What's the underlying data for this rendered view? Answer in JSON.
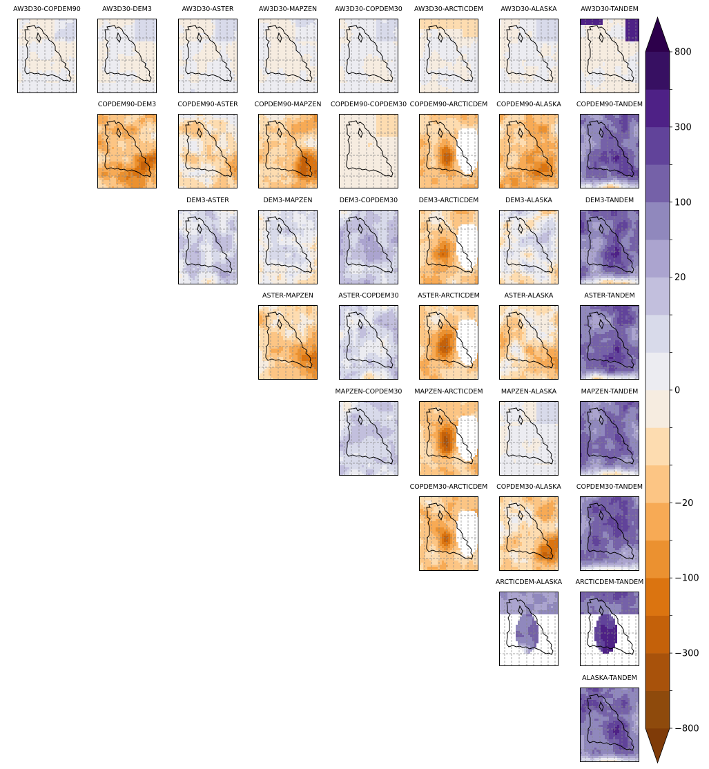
{
  "chart_data": {
    "type": "heatmap",
    "layout": "upper-triangular grid of pairwise difference maps",
    "dataset_order": [
      "AW3D30",
      "COPDEM90",
      "DEM3",
      "ASTER",
      "MAPZEN",
      "COPDEM30",
      "ARCTICDEM",
      "ALASKA",
      "TANDEM"
    ],
    "panels": [
      {
        "title": "AW3D30-COPDEM90",
        "row": 0,
        "col": 0,
        "tone": "near-zero"
      },
      {
        "title": "AW3D30-DEM3",
        "row": 0,
        "col": 1,
        "tone": "near-zero"
      },
      {
        "title": "AW3D30-ASTER",
        "row": 0,
        "col": 2,
        "tone": "near-zero"
      },
      {
        "title": "AW3D30-MAPZEN",
        "row": 0,
        "col": 3,
        "tone": "near-zero"
      },
      {
        "title": "AW3D30-COPDEM30",
        "row": 0,
        "col": 4,
        "tone": "near-zero"
      },
      {
        "title": "AW3D30-ARCTICDEM",
        "row": 0,
        "col": 5,
        "tone": "near-zero-arctic"
      },
      {
        "title": "AW3D30-ALASKA",
        "row": 0,
        "col": 6,
        "tone": "near-zero"
      },
      {
        "title": "AW3D30-TANDEM",
        "row": 0,
        "col": 7,
        "tone": "near-zero-tandem"
      },
      {
        "title": "COPDEM90-DEM3",
        "row": 1,
        "col": 1,
        "tone": "negative"
      },
      {
        "title": "COPDEM90-ASTER",
        "row": 1,
        "col": 2,
        "tone": "negative-mixed"
      },
      {
        "title": "COPDEM90-MAPZEN",
        "row": 1,
        "col": 3,
        "tone": "negative"
      },
      {
        "title": "COPDEM90-COPDEM30",
        "row": 1,
        "col": 4,
        "tone": "near-zero-neg"
      },
      {
        "title": "COPDEM90-ARCTICDEM",
        "row": 1,
        "col": 5,
        "tone": "arctic-negative"
      },
      {
        "title": "COPDEM90-ALASKA",
        "row": 1,
        "col": 6,
        "tone": "negative"
      },
      {
        "title": "COPDEM90-TANDEM",
        "row": 1,
        "col": 7,
        "tone": "tandem"
      },
      {
        "title": "DEM3-ASTER",
        "row": 2,
        "col": 2,
        "tone": "positive-mixed"
      },
      {
        "title": "DEM3-MAPZEN",
        "row": 2,
        "col": 3,
        "tone": "mixed"
      },
      {
        "title": "DEM3-COPDEM30",
        "row": 2,
        "col": 4,
        "tone": "positive"
      },
      {
        "title": "DEM3-ARCTICDEM",
        "row": 2,
        "col": 5,
        "tone": "arctic-negative"
      },
      {
        "title": "DEM3-ALASKA",
        "row": 2,
        "col": 6,
        "tone": "mixed"
      },
      {
        "title": "DEM3-TANDEM",
        "row": 2,
        "col": 7,
        "tone": "tandem"
      },
      {
        "title": "ASTER-MAPZEN",
        "row": 3,
        "col": 3,
        "tone": "negative"
      },
      {
        "title": "ASTER-COPDEM30",
        "row": 3,
        "col": 4,
        "tone": "positive-mixed"
      },
      {
        "title": "ASTER-ARCTICDEM",
        "row": 3,
        "col": 5,
        "tone": "arctic-negative"
      },
      {
        "title": "ASTER-ALASKA",
        "row": 3,
        "col": 6,
        "tone": "negative-mixed"
      },
      {
        "title": "ASTER-TANDEM",
        "row": 3,
        "col": 7,
        "tone": "tandem"
      },
      {
        "title": "MAPZEN-COPDEM30",
        "row": 4,
        "col": 4,
        "tone": "positive"
      },
      {
        "title": "MAPZEN-ARCTICDEM",
        "row": 4,
        "col": 5,
        "tone": "arctic-negative"
      },
      {
        "title": "MAPZEN-ALASKA",
        "row": 4,
        "col": 6,
        "tone": "near-zero"
      },
      {
        "title": "MAPZEN-TANDEM",
        "row": 4,
        "col": 7,
        "tone": "tandem"
      },
      {
        "title": "COPDEM30-ARCTICDEM",
        "row": 5,
        "col": 5,
        "tone": "arctic-negative"
      },
      {
        "title": "COPDEM30-ALASKA",
        "row": 5,
        "col": 6,
        "tone": "negative"
      },
      {
        "title": "COPDEM30-TANDEM",
        "row": 5,
        "col": 7,
        "tone": "tandem"
      },
      {
        "title": "ARCTICDEM-ALASKA",
        "row": 6,
        "col": 6,
        "tone": "arctic-positive"
      },
      {
        "title": "ARCTICDEM-TANDEM",
        "row": 6,
        "col": 7,
        "tone": "arctic-tandem"
      },
      {
        "title": "ALASKA-TANDEM",
        "row": 7,
        "col": 7,
        "tone": "tandem"
      }
    ],
    "colorbar": {
      "orientation": "vertical",
      "placement": "right",
      "extend": "both",
      "levels": [
        -800,
        -500,
        -300,
        -200,
        -100,
        -50,
        -20,
        -10,
        -5,
        0,
        5,
        10,
        20,
        50,
        100,
        200,
        300,
        500,
        800
      ],
      "labeled_ticks": [
        {
          "value": 800,
          "label": "800"
        },
        {
          "value": 300,
          "label": "300"
        },
        {
          "value": 100,
          "label": "100"
        },
        {
          "value": 20,
          "label": "20"
        },
        {
          "value": 0,
          "label": "0"
        },
        {
          "value": -20,
          "label": "−20"
        },
        {
          "value": -100,
          "label": "−100"
        },
        {
          "value": -300,
          "label": "−300"
        },
        {
          "value": -800,
          "label": "−800"
        }
      ],
      "colors": [
        "#8e4a0c",
        "#a8520b",
        "#c4610a",
        "#db7410",
        "#eb9130",
        "#f7aa55",
        "#fcc584",
        "#fddcb0",
        "#f6ece0",
        "#ececf1",
        "#d8daea",
        "#c2bfdd",
        "#aba4cf",
        "#9088bd",
        "#7561a8",
        "#61439a",
        "#4e2186",
        "#371062"
      ],
      "under_color": "#7f3b08",
      "over_color": "#2d004b"
    },
    "grid": true
  }
}
